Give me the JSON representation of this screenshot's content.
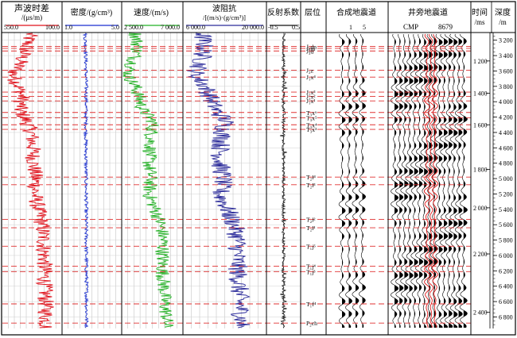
{
  "columns": [
    {
      "id": "sonic",
      "title_line1": "声波时差",
      "title_line2": "/(μs/m)",
      "scale_min": "550.0",
      "scale_max": "100.0",
      "color": "#e0101a"
    },
    {
      "id": "density",
      "title_line1": "密度/(g/cm³)",
      "title_line2": "",
      "scale_min": "1.0",
      "scale_max": "5.0",
      "color": "#1a2fd0"
    },
    {
      "id": "velocity",
      "title_line1": "速度/(m/s)",
      "title_line2": "",
      "scale_min": "2 500.0",
      "scale_max": "7 000.0",
      "color": "#22b024"
    },
    {
      "id": "impedance",
      "title_line1": "波阻抗",
      "title_line2": "/[(m/s)·(g/cm³)]",
      "scale_min": "6 000.0",
      "scale_max": "20 000.0",
      "color": "#2a2a9a"
    },
    {
      "id": "reflection",
      "title_line1": "反射系数",
      "title_line2": "",
      "scale_min": "-0.5",
      "scale_max": "0.5",
      "color": "#111111"
    },
    {
      "id": "layer",
      "title_line1": "层位",
      "title_line2": ""
    },
    {
      "id": "synthetic",
      "title_line1": "合成地震道",
      "title_line2": "",
      "tick_a": "1",
      "tick_b": "5"
    },
    {
      "id": "seismic",
      "title_line1": "井旁地震道",
      "title_line2": "",
      "cmp_label": "CMP",
      "cmp_value": "8679"
    },
    {
      "id": "time",
      "title_line1": "时间",
      "title_line2": "/ms"
    },
    {
      "id": "depth",
      "title_line1": "深度",
      "title_line2": "/m"
    }
  ],
  "horizons": [
    {
      "label": "J₃dn",
      "depth": 3280
    },
    {
      "label": "J₃m",
      "depth": 3306
    },
    {
      "label": "J₃d",
      "depth": 3340
    },
    {
      "label": "J₂z",
      "depth": 3590
    },
    {
      "label": "J₁x⁴",
      "depth": 3680
    },
    {
      "label": "J₁x³",
      "depth": 3875
    },
    {
      "label": "J₁x²",
      "depth": 3930
    },
    {
      "label": "J₁x¹",
      "depth": 3990
    },
    {
      "label": "T₃x⁶",
      "depth": 4140
    },
    {
      "label": "T₃x⁵",
      "depth": 4210
    },
    {
      "label": "T₃x⁴",
      "depth": 4300
    },
    {
      "label": "T₃x³",
      "depth": 4360
    },
    {
      "label": "T₂l⁴",
      "depth": 4980
    },
    {
      "label": "T₂l³",
      "depth": 5080
    },
    {
      "label": "T₂l²",
      "depth": 5530
    },
    {
      "label": "T₂l¹",
      "depth": 5640
    },
    {
      "label": "T₁j⁵",
      "depth": 5880
    },
    {
      "label": "T₁j⁴",
      "depth": 6140
    },
    {
      "label": "T₁j³",
      "depth": 6210
    },
    {
      "label": "T₁f⁴",
      "depth": 6630
    },
    {
      "label": "P₂ch",
      "depth": 6880
    }
  ],
  "chart_data": {
    "type": "line",
    "title": "",
    "depth_axis": {
      "label": "深度 /m",
      "range": [
        3100,
        6950
      ],
      "ticks": [
        3200,
        3400,
        3600,
        3800,
        4000,
        4200,
        4400,
        4600,
        4800,
        5000,
        5200,
        5400,
        5600,
        5800,
        6000,
        6200,
        6400,
        6600,
        6800
      ]
    },
    "time_axis": {
      "label": "时间 /ms",
      "ticks": [
        {
          "value": 1200,
          "depth": 3470
        },
        {
          "value": 1400,
          "depth": 3890
        },
        {
          "value": 1600,
          "depth": 4300
        },
        {
          "value": 1800,
          "depth": 4880
        },
        {
          "value": 2000,
          "depth": 5380
        },
        {
          "value": 2200,
          "depth": 5980
        },
        {
          "value": 2400,
          "depth": 6740
        }
      ]
    },
    "series": [
      {
        "name": "声波时差",
        "unit": "μs/m",
        "xlim": [
          550,
          100
        ],
        "depth": [
          3100,
          3300,
          3500,
          3650,
          3800,
          3950,
          4100,
          4250,
          4400,
          4600,
          4800,
          5000,
          5200,
          5400,
          5600,
          5800,
          6000,
          6200,
          6400,
          6600,
          6800,
          6950
        ],
        "values": [
          340,
          370,
          420,
          470,
          430,
          400,
          420,
          370,
          330,
          320,
          315,
          300,
          305,
          280,
          250,
          240,
          235,
          230,
          230,
          225,
          220,
          220
        ]
      },
      {
        "name": "密度",
        "unit": "g/cm³",
        "xlim": [
          1,
          5
        ],
        "depth": [
          3100,
          3500,
          3900,
          4300,
          4800,
          5300,
          5800,
          6300,
          6950
        ],
        "values": [
          2.55,
          2.6,
          2.62,
          2.6,
          2.6,
          2.62,
          2.62,
          2.64,
          2.65
        ]
      },
      {
        "name": "速度",
        "unit": "m/s",
        "xlim": [
          2500,
          7000
        ],
        "depth": [
          3100,
          3300,
          3500,
          3650,
          3800,
          3950,
          4100,
          4250,
          4400,
          4600,
          4800,
          5000,
          5200,
          5400,
          5600,
          5800,
          6000,
          6200,
          6400,
          6600,
          6800,
          6950
        ],
        "values": [
          3500,
          3700,
          3300,
          2950,
          3500,
          3800,
          4000,
          4800,
          4700,
          4600,
          4500,
          4650,
          4500,
          4950,
          5400,
          5550,
          5500,
          5500,
          5600,
          5650,
          5800,
          5800
        ]
      },
      {
        "name": "波阻抗",
        "unit": "(m/s)·(g/cm³)",
        "xlim": [
          6000,
          20000
        ],
        "depth": [
          3100,
          3300,
          3500,
          3650,
          3800,
          3950,
          4100,
          4250,
          4400,
          4600,
          4800,
          5000,
          5200,
          5400,
          5600,
          5800,
          6000,
          6200,
          6400,
          6600,
          6800,
          6950
        ],
        "values": [
          9200,
          9600,
          9000,
          8000,
          9800,
          10600,
          11400,
          13200,
          12700,
          12300,
          12200,
          12800,
          12200,
          13400,
          14600,
          15200,
          15100,
          15200,
          15400,
          15500,
          15800,
          15800
        ]
      }
    ]
  }
}
